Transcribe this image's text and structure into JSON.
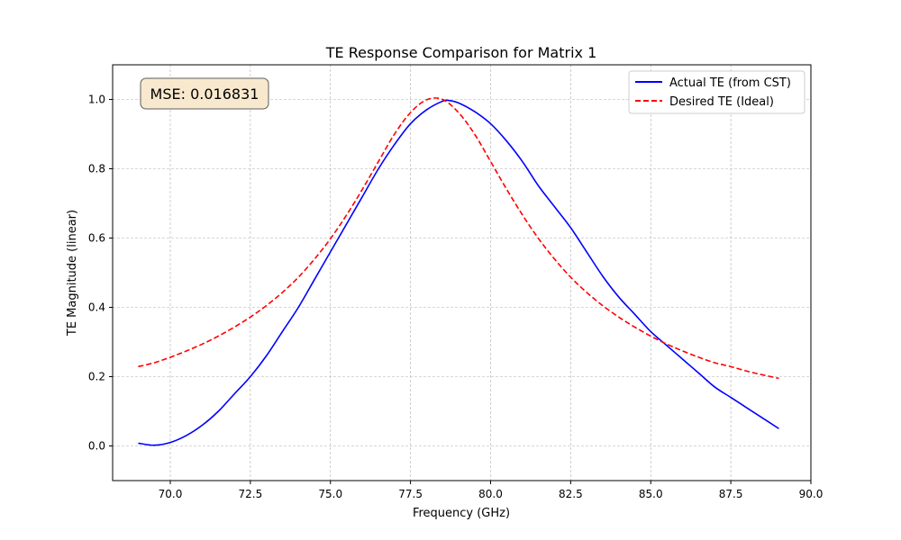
{
  "chart_data": {
    "type": "line",
    "title": "TE Response Comparison for Matrix 1",
    "xlabel": "Frequency (GHz)",
    "ylabel": "TE Magnitude (linear)",
    "xlim": [
      68.2,
      90.0
    ],
    "ylim": [
      -0.1,
      1.1
    ],
    "xticks": [
      70.0,
      72.5,
      75.0,
      77.5,
      80.0,
      82.5,
      85.0,
      87.5,
      90.0
    ],
    "xtick_labels": [
      "70.0",
      "72.5",
      "75.0",
      "77.5",
      "80.0",
      "82.5",
      "85.0",
      "87.5",
      "90.0"
    ],
    "yticks": [
      0.0,
      0.2,
      0.4,
      0.6,
      0.8,
      1.0
    ],
    "ytick_labels": [
      "0.0",
      "0.2",
      "0.4",
      "0.6",
      "0.8",
      "1.0"
    ],
    "grid": true,
    "legend_position": "top-right",
    "annotation": "MSE: 0.016831",
    "series": [
      {
        "name": "Actual TE (from CST)",
        "color": "#0000ff",
        "style": "solid",
        "x": [
          69.0,
          69.5,
          70.0,
          70.5,
          71.0,
          71.5,
          72.0,
          72.5,
          73.0,
          73.5,
          74.0,
          74.5,
          75.0,
          75.5,
          76.0,
          76.5,
          77.0,
          77.5,
          78.0,
          78.5,
          78.7,
          79.0,
          79.5,
          80.0,
          80.5,
          81.0,
          81.5,
          82.0,
          82.5,
          83.0,
          83.5,
          84.0,
          84.5,
          85.0,
          85.5,
          86.0,
          86.5,
          87.0,
          87.5,
          88.0,
          88.5,
          89.0
        ],
        "y": [
          0.008,
          0.002,
          0.01,
          0.03,
          0.06,
          0.1,
          0.15,
          0.2,
          0.26,
          0.33,
          0.4,
          0.48,
          0.56,
          0.64,
          0.72,
          0.8,
          0.87,
          0.93,
          0.97,
          0.995,
          0.997,
          0.99,
          0.965,
          0.93,
          0.88,
          0.82,
          0.75,
          0.69,
          0.63,
          0.56,
          0.49,
          0.43,
          0.38,
          0.33,
          0.29,
          0.25,
          0.21,
          0.17,
          0.14,
          0.11,
          0.08,
          0.05
        ]
      },
      {
        "name": "Desired TE (Ideal)",
        "color": "#ff0000",
        "style": "dashed",
        "x": [
          69.0,
          69.5,
          70.0,
          70.5,
          71.0,
          71.5,
          72.0,
          72.5,
          73.0,
          73.5,
          74.0,
          74.5,
          75.0,
          75.5,
          76.0,
          76.5,
          77.0,
          77.5,
          78.0,
          78.5,
          79.0,
          79.5,
          80.0,
          80.5,
          81.0,
          81.5,
          82.0,
          82.5,
          83.0,
          83.5,
          84.0,
          84.5,
          85.0,
          85.5,
          86.0,
          86.5,
          87.0,
          87.5,
          88.0,
          88.5,
          89.0
        ],
        "y": [
          0.229,
          0.24,
          0.256,
          0.274,
          0.294,
          0.317,
          0.343,
          0.372,
          0.405,
          0.443,
          0.487,
          0.539,
          0.598,
          0.666,
          0.741,
          0.821,
          0.9,
          0.962,
          0.999,
          1.0,
          0.962,
          0.9,
          0.821,
          0.741,
          0.666,
          0.598,
          0.539,
          0.487,
          0.443,
          0.405,
          0.372,
          0.343,
          0.317,
          0.294,
          0.274,
          0.256,
          0.24,
          0.229,
          0.216,
          0.205,
          0.195
        ]
      }
    ]
  }
}
